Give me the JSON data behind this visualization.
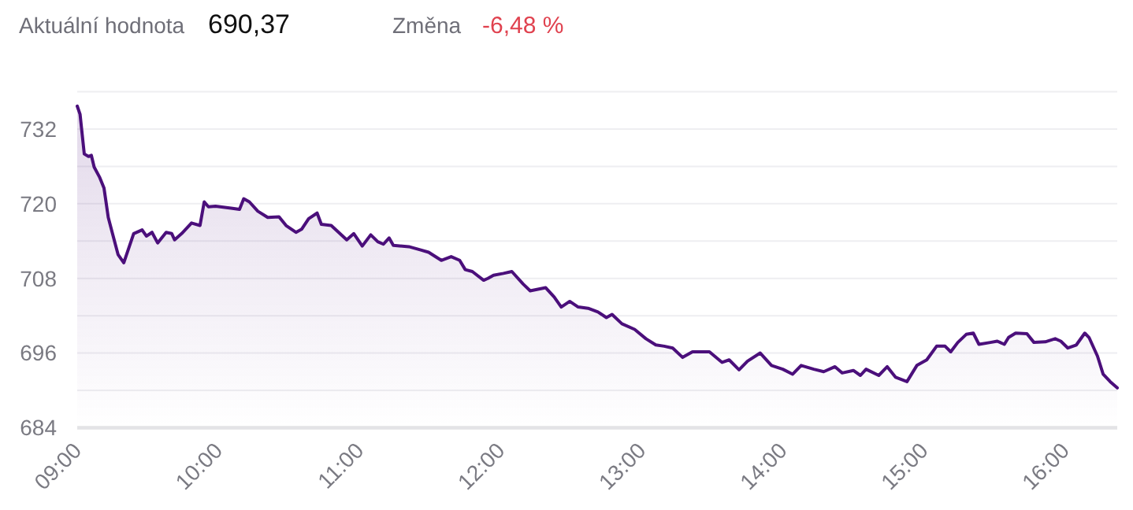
{
  "chart_data": {
    "type": "area",
    "annotations": [
      "Aktuální hodnota",
      "690,37",
      "Změna",
      "-6,48 %"
    ],
    "x": [
      9.0,
      9.02,
      9.05,
      9.08,
      9.1,
      9.12,
      9.16,
      9.19,
      9.22,
      9.25,
      9.29,
      9.33,
      9.4,
      9.46,
      9.49,
      9.53,
      9.57,
      9.63,
      9.67,
      9.69,
      9.74,
      9.81,
      9.87,
      9.9,
      9.93,
      9.98,
      10.09,
      10.15,
      10.18,
      10.22,
      10.28,
      10.35,
      10.43,
      10.48,
      10.55,
      10.59,
      10.64,
      10.7,
      10.73,
      10.8,
      10.91,
      10.96,
      11.02,
      11.08,
      11.13,
      11.17,
      11.21,
      11.24,
      11.35,
      11.43,
      11.49,
      11.58,
      11.65,
      11.71,
      11.75,
      11.8,
      11.88,
      11.91,
      11.95,
      12.02,
      12.08,
      12.16,
      12.21,
      12.32,
      12.38,
      12.43,
      12.49,
      12.55,
      12.62,
      12.69,
      12.75,
      12.79,
      12.86,
      12.95,
      13.03,
      13.1,
      13.16,
      13.22,
      13.29,
      13.36,
      13.48,
      13.57,
      13.62,
      13.69,
      13.75,
      13.84,
      13.92,
      14.0,
      14.07,
      14.13,
      14.22,
      14.29,
      14.37,
      14.42,
      14.5,
      14.55,
      14.59,
      14.68,
      14.74,
      14.8,
      14.88,
      14.95,
      15.02,
      15.09,
      15.15,
      15.19,
      15.24,
      15.3,
      15.35,
      15.39,
      15.47,
      15.52,
      15.57,
      15.6,
      15.65,
      15.73,
      15.78,
      15.86,
      15.93,
      15.97,
      16.02,
      16.08,
      16.14,
      16.17,
      16.23,
      16.27,
      16.32,
      16.37
    ],
    "series": [
      {
        "color": "#4b0f7b",
        "values": [
          735.7,
          734.4,
          728.0,
          727.6,
          727.8,
          725.9,
          724.2,
          722.5,
          717.8,
          715.2,
          711.8,
          710.5,
          715.2,
          715.8,
          714.8,
          715.4,
          713.7,
          715.4,
          715.2,
          714.2,
          715.2,
          716.9,
          716.5,
          720.3,
          719.5,
          719.6,
          719.3,
          719.1,
          720.8,
          720.3,
          718.8,
          717.8,
          717.9,
          716.5,
          715.4,
          715.9,
          717.6,
          718.5,
          716.7,
          716.5,
          714.2,
          715.2,
          713.2,
          715.0,
          713.9,
          713.5,
          714.5,
          713.3,
          713.1,
          712.6,
          712.2,
          710.9,
          711.5,
          710.9,
          709.4,
          709.1,
          707.7,
          708.0,
          708.5,
          708.8,
          709.1,
          707.1,
          706.0,
          706.5,
          705.0,
          703.4,
          704.3,
          703.4,
          703.2,
          702.6,
          701.7,
          702.2,
          700.7,
          699.8,
          698.3,
          697.3,
          697.1,
          696.8,
          695.3,
          696.2,
          696.2,
          694.5,
          694.9,
          693.3,
          694.7,
          696.0,
          694.0,
          693.4,
          692.6,
          694.0,
          693.4,
          693.0,
          693.8,
          692.8,
          693.2,
          692.4,
          693.4,
          692.4,
          693.8,
          692.1,
          691.4,
          694.0,
          694.9,
          697.1,
          697.1,
          696.2,
          697.7,
          699.0,
          699.2,
          697.4,
          697.7,
          697.9,
          697.4,
          698.5,
          699.2,
          699.1,
          697.7,
          697.8,
          698.3,
          697.9,
          696.8,
          697.3,
          699.2,
          698.5,
          695.5,
          692.6,
          691.4,
          690.4
        ]
      }
    ],
    "xlim": [
      9,
      16.37
    ],
    "xticks": [
      {
        "value": 9,
        "label": "09:00"
      },
      {
        "value": 10,
        "label": "10:00"
      },
      {
        "value": 11,
        "label": "11:00"
      },
      {
        "value": 12,
        "label": "12:00"
      },
      {
        "value": 13,
        "label": "13:00"
      },
      {
        "value": 14,
        "label": "14:00"
      },
      {
        "value": 15,
        "label": "15:00"
      },
      {
        "value": 16,
        "label": "16:00"
      }
    ],
    "ylim": [
      684,
      738
    ],
    "yticks": [
      684,
      {
        "value": 690,
        "label": null
      },
      696,
      {
        "value": 702,
        "label": null
      },
      708,
      {
        "value": 714,
        "label": null
      },
      720,
      {
        "value": 726,
        "label": null
      },
      732,
      {
        "value": 738,
        "label": null
      }
    ],
    "grid": "y",
    "line_style": "solid",
    "marker": "none"
  }
}
